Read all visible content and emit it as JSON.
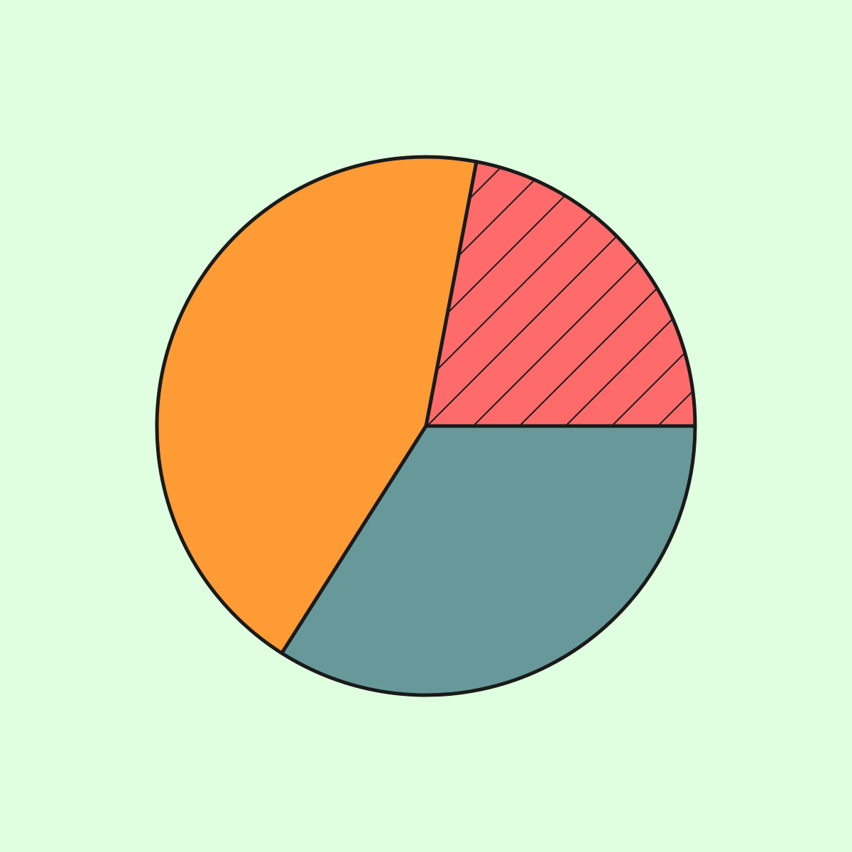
{
  "chart_data": {
    "type": "pie",
    "title": "",
    "start_angle_deg": 0,
    "direction": "counterclockwise",
    "stroke_color": "#1A1A1A",
    "slices": [
      {
        "label": "",
        "value": 22,
        "color": "#FF6B6B",
        "hatch": "diagonal"
      },
      {
        "label": "",
        "value": 44,
        "color": "#FF9B35",
        "hatch": "none"
      },
      {
        "label": "",
        "value": 34,
        "color": "#68999A",
        "hatch": "none"
      }
    ]
  },
  "background_color": "#E0FFE0"
}
